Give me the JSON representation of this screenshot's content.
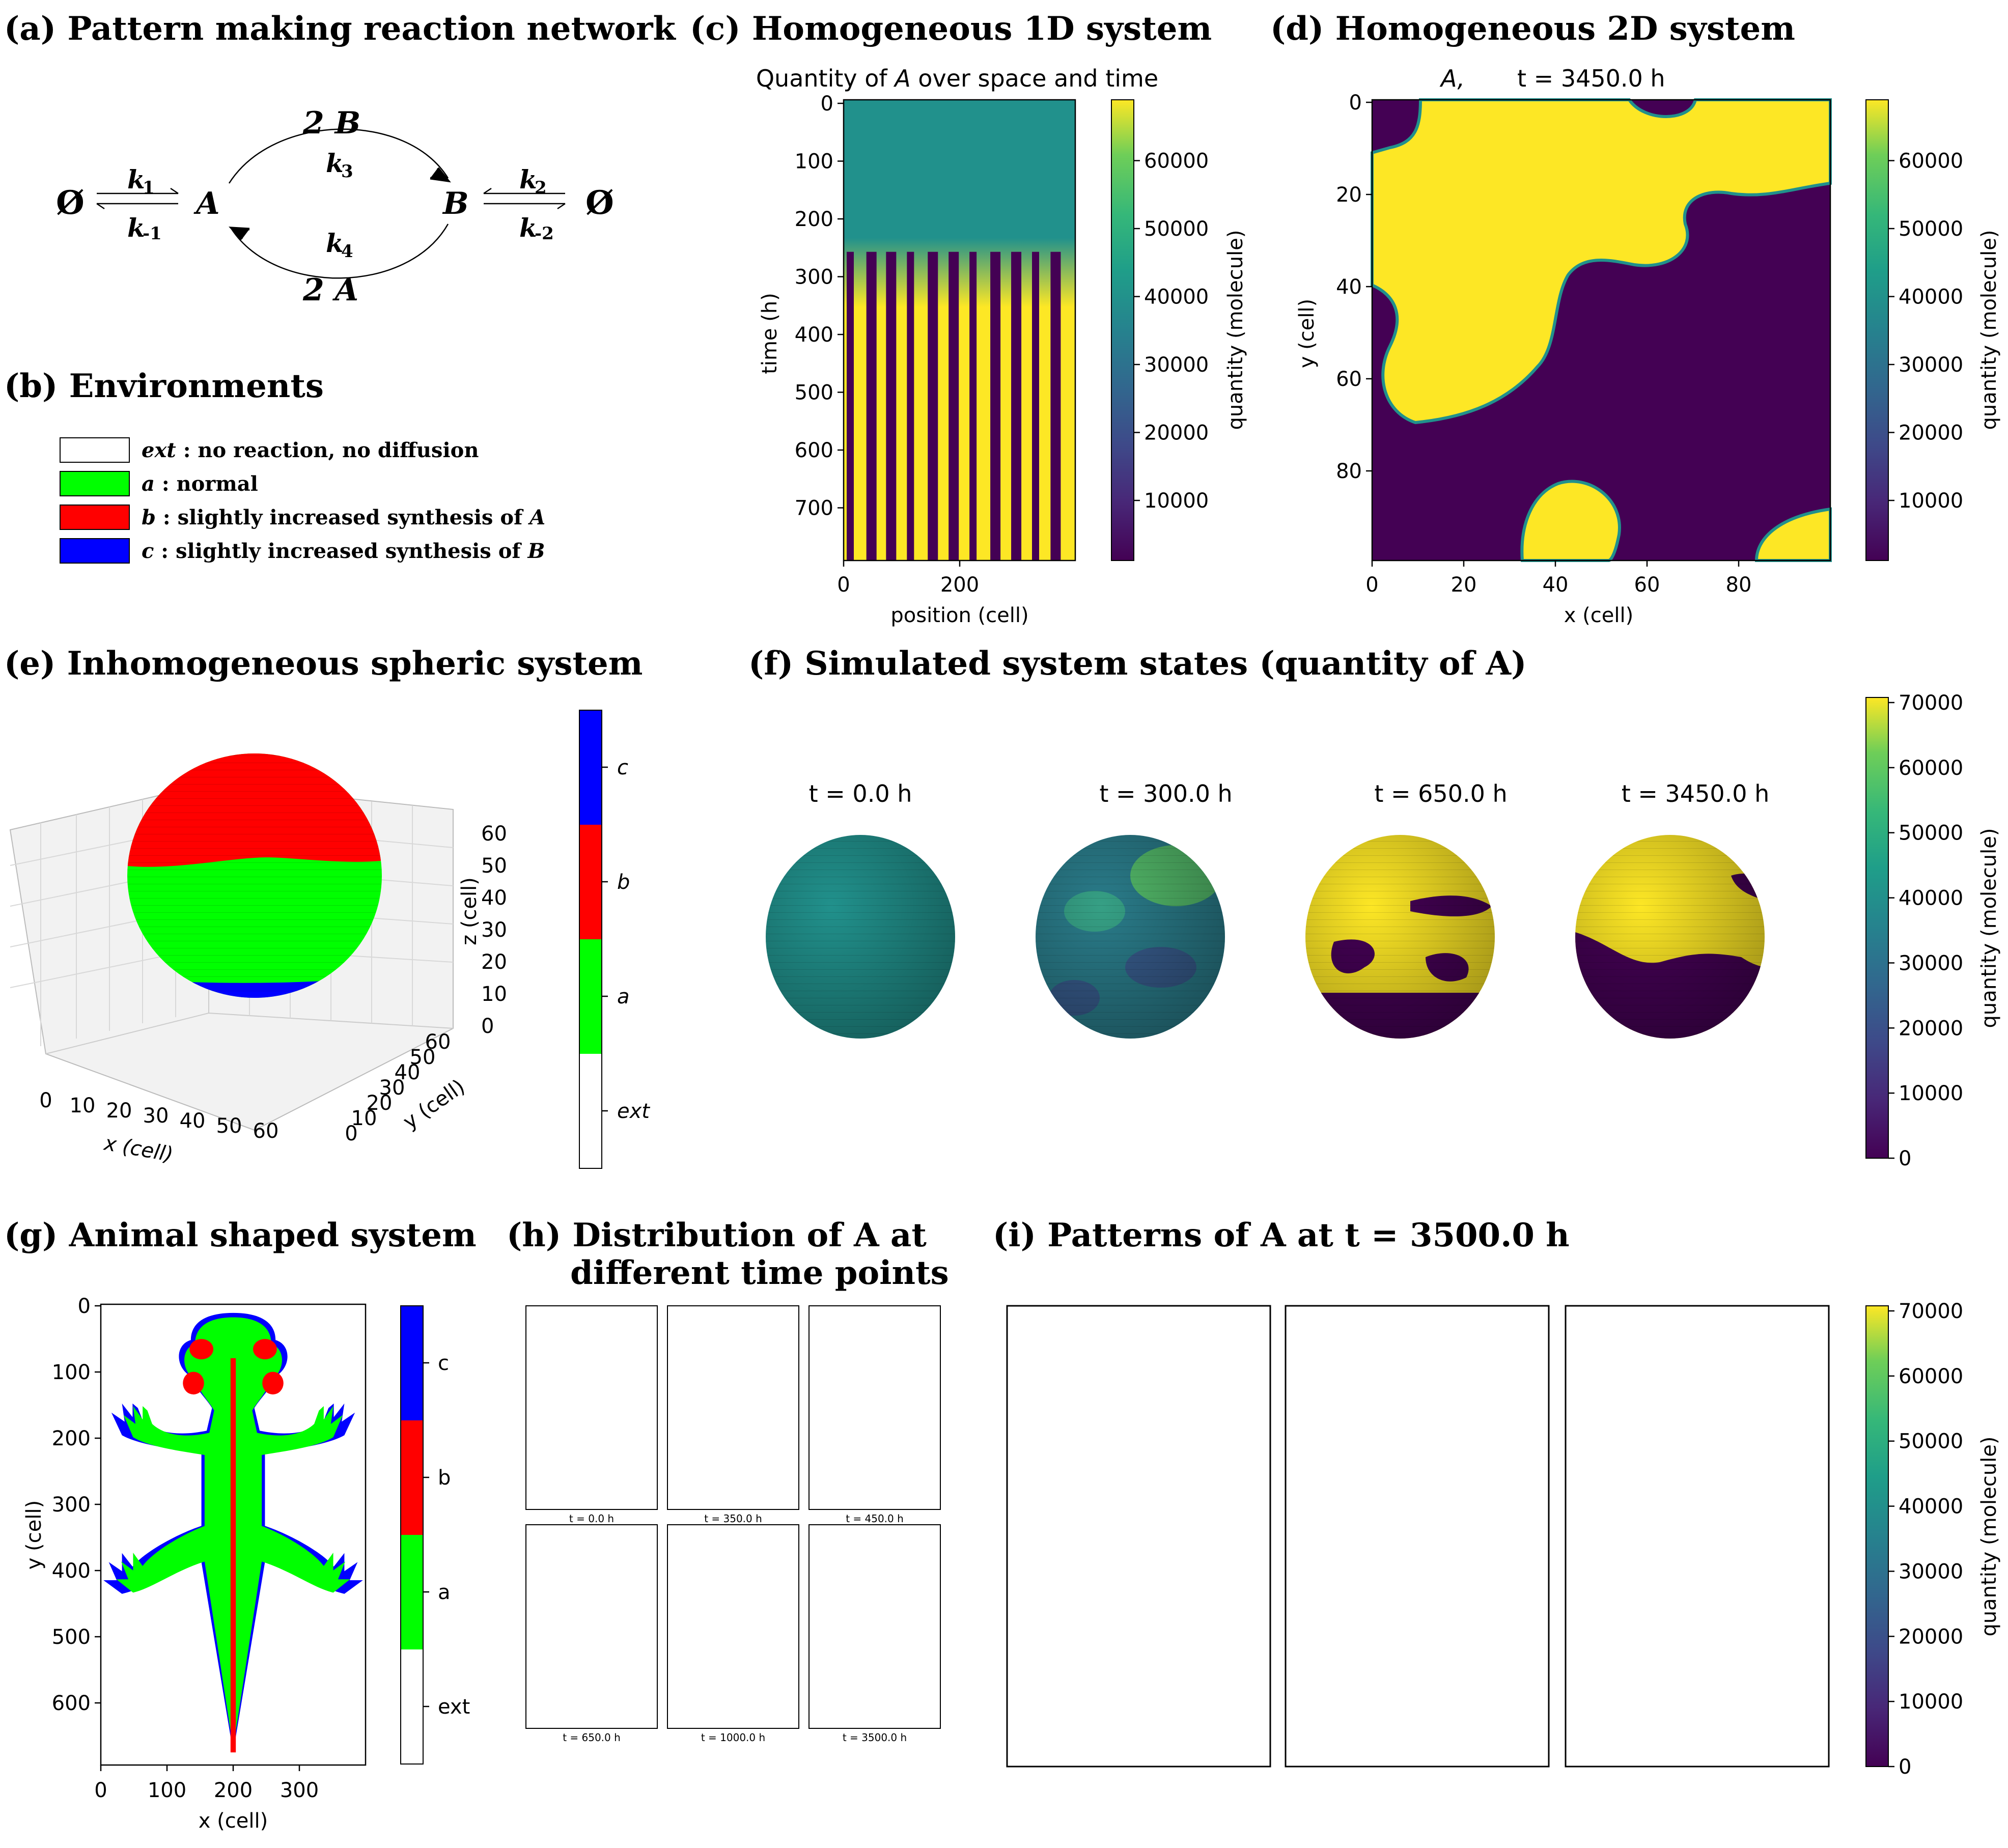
{
  "colors": {
    "viridis_dark": "#440154",
    "viridis_teal": "#21918c",
    "viridis_yellow": "#fde725",
    "ext": "#ffffff",
    "a": "#00ff00",
    "b": "#ff0000",
    "c": "#0000ff"
  },
  "panel_a": {
    "title": "(a) Pattern making reaction network",
    "empty_left": "Ø",
    "k1": "k",
    "k1_sub": "1",
    "km1": "k",
    "km1_sub": "-1",
    "node_A": "A",
    "two_B": "2 B",
    "k3": "k",
    "k3_sub": "3",
    "k4": "k",
    "k4_sub": "4",
    "two_A": "2 A",
    "node_B": "B",
    "k2": "k",
    "k2_sub": "2",
    "km2": "k",
    "km2_sub": "-2",
    "empty_right": "Ø"
  },
  "panel_b": {
    "title": "(b) Environments",
    "legend": [
      {
        "key": "ext",
        "text": " : no reaction, no diffusion",
        "color": "#ffffff"
      },
      {
        "key": "a",
        "text": " : normal",
        "color": "#00ff00"
      },
      {
        "key": "b",
        "text": " : slightly increased synthesis of ",
        "tail": "A",
        "color": "#ff0000"
      },
      {
        "key": "c",
        "text": " : slightly increased synthesis of ",
        "tail": "B",
        "color": "#0000ff"
      }
    ]
  },
  "panel_c": {
    "title": "(c) Homogeneous 1D system",
    "plot_title": "Quantity of A over space and time",
    "plot_title_pre": "Quantity of ",
    "plot_title_var": "A",
    "plot_title_post": " over space and time",
    "xlabel": "position (cell)",
    "ylabel": "time (h)",
    "cbar_label": "quantity (molecule)",
    "xticks": [
      "0",
      "200"
    ],
    "yticks": [
      "0",
      "100",
      "200",
      "300",
      "400",
      "500",
      "600",
      "700"
    ],
    "cbar_ticks": [
      "10000",
      "20000",
      "30000",
      "40000",
      "50000",
      "60000"
    ]
  },
  "panel_d": {
    "title": "(d) Homogeneous 2D system",
    "plot_title_var": "A,",
    "plot_title_time": "t = 3450.0 h",
    "xlabel": "x (cell)",
    "ylabel": "y (cell)",
    "cbar_label": "quantity (molecule)",
    "xticks": [
      "0",
      "20",
      "40",
      "60",
      "80"
    ],
    "yticks": [
      "0",
      "20",
      "40",
      "60",
      "80"
    ],
    "cbar_ticks": [
      "10000",
      "20000",
      "30000",
      "40000",
      "50000",
      "60000"
    ]
  },
  "panel_e": {
    "title": "(e) Inhomogeneous spheric system",
    "xlabel": "x (cell)",
    "ylabel": "y (cell)",
    "zlabel": "z (cell)",
    "xticks": [
      "0",
      "10",
      "20",
      "30",
      "40",
      "50",
      "60"
    ],
    "yticks": [
      "0",
      "10",
      "20",
      "30",
      "40",
      "50",
      "60"
    ],
    "zticks": [
      "0",
      "10",
      "20",
      "30",
      "40",
      "50",
      "60"
    ],
    "cbar_labels": [
      "c",
      "b",
      "a",
      "ext"
    ]
  },
  "panel_f": {
    "title": "(f) Simulated system states (quantity of A)",
    "times": [
      "t = 0.0 h",
      "t = 300.0 h",
      "t = 650.0 h",
      "t = 3450.0 h"
    ],
    "cbar_label": "quantity (molecule)",
    "cbar_ticks": [
      "0",
      "10000",
      "20000",
      "30000",
      "40000",
      "50000",
      "60000",
      "70000"
    ]
  },
  "panel_g": {
    "title": "(g) Animal shaped system",
    "xlabel": "x (cell)",
    "ylabel": "y (cell)",
    "xticks": [
      "0",
      "100",
      "200",
      "300"
    ],
    "yticks": [
      "0",
      "100",
      "200",
      "300",
      "400",
      "500",
      "600"
    ],
    "cbar_labels": [
      "c",
      "b",
      "a",
      "ext"
    ]
  },
  "panel_h": {
    "title_line1": "(h) Distribution of A at",
    "title_line2": "different time points",
    "times": [
      "t = 0.0 h",
      "t = 350.0 h",
      "t = 450.0 h",
      "t = 650.0 h",
      "t = 1000.0 h",
      "t = 3500.0 h"
    ]
  },
  "panel_i": {
    "title": "(i) Patterns of A at t = 3500.0 h",
    "cbar_label": "quantity (molecule)",
    "cbar_ticks": [
      "0",
      "10000",
      "20000",
      "30000",
      "40000",
      "50000",
      "60000",
      "70000"
    ]
  },
  "chart_data": [
    {
      "type": "heatmap",
      "panel": "c",
      "title": "Quantity of A over space and time",
      "xlabel": "position (cell)",
      "ylabel": "time (h)",
      "xlim": [
        0,
        400
      ],
      "ylim": [
        800,
        0
      ],
      "colorbar_range": [
        0,
        68000
      ],
      "colormap": "viridis",
      "n_stripes": 11
    },
    {
      "type": "heatmap",
      "panel": "d",
      "title": "A, t = 3450.0 h",
      "xlabel": "x (cell)",
      "ylabel": "y (cell)",
      "xlim": [
        0,
        100
      ],
      "ylim": [
        100,
        0
      ],
      "colorbar_range": [
        0,
        68000
      ],
      "colormap": "viridis"
    },
    {
      "type": "heatmap",
      "panel": "f",
      "times_h": [
        0,
        300,
        650,
        3450
      ],
      "colorbar_range": [
        0,
        70000
      ],
      "colormap": "viridis"
    },
    {
      "type": "heatmap",
      "panel": "i",
      "time_h": 3500,
      "colorbar_range": [
        0,
        70000
      ],
      "colormap": "viridis"
    }
  ]
}
